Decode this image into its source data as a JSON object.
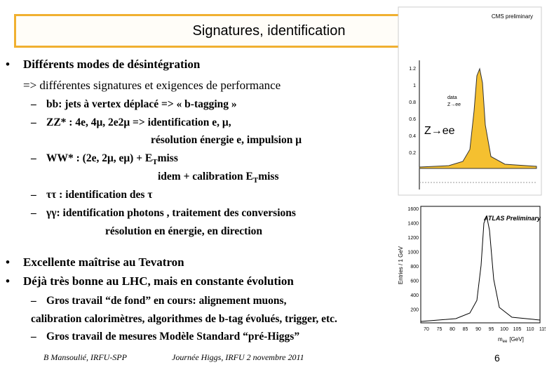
{
  "header": {
    "title": "Signatures, identification"
  },
  "bullets_1": [
    {
      "marker": "•",
      "text": "Différents modes de désintégration"
    }
  ],
  "bullet_1_cont": "=> différentes signatures et exigences de performance",
  "dashes_1": [
    {
      "marker": "–",
      "text": "bb: jets à vertex déplacé => « b-tagging »"
    },
    {
      "marker": "–",
      "text": "ZZ* : 4e, 4μ, 2e2μ => identification e, μ,"
    },
    {
      "text": "résolution énergie e, impulsion μ"
    },
    {
      "marker": "–",
      "text": "WW* : (2e, 2μ, eμ) + E",
      "sub": "T",
      "after": "miss"
    },
    {
      "text": "idem + calibration E",
      "sub": "T",
      "after": "miss"
    },
    {
      "marker": "–",
      "text": "ττ : identification des τ"
    },
    {
      "marker": "–",
      "text": "γγ: identification photons , traitement des conversions"
    },
    {
      "text": "résolution en énergie, en direction"
    }
  ],
  "bullets_2": [
    {
      "marker": "•",
      "text": "Excellente maîtrise au Tevatron"
    },
    {
      "marker": "•",
      "text": "Déjà très bonne au LHC, mais en constante évolution"
    }
  ],
  "dashes_2": [
    {
      "marker": "–",
      "text": "Gros travail “de fond” en cours: alignement muons,"
    },
    {
      "text": "calibration calorimètres, algorithmes de b-tag évolués, trigger, etc."
    },
    {
      "marker": "–",
      "text": "Gros travail de mesures Modèle Standard “pré-Higgs”"
    }
  ],
  "footer": {
    "author": "B Mansoulié, IRFU-SPP",
    "event": "Journée Higgs, IRFU 2 novembre 2011",
    "page": "6"
  },
  "plots": {
    "cms": {
      "label": "CMS preliminary",
      "legend": [
        "data",
        "Z→ee"
      ],
      "channel": "Z→ee",
      "yticks": [
        "1.2",
        "1",
        "0.8",
        "0.6",
        "0.4",
        "0.2"
      ]
    },
    "atlas": {
      "label": "ATLAS Preliminary",
      "ylabel": "Entries / 1 GeV",
      "xlabel": "m",
      "xlabel_sub": "ee",
      "xlabel_unit": "[GeV]",
      "yticks": [
        "1600",
        "1400",
        "1200",
        "1000",
        "800",
        "600",
        "400",
        "200"
      ],
      "xticks": [
        "70",
        "75",
        "80",
        "85",
        "90",
        "95",
        "100",
        "105",
        "110",
        "115"
      ]
    }
  }
}
